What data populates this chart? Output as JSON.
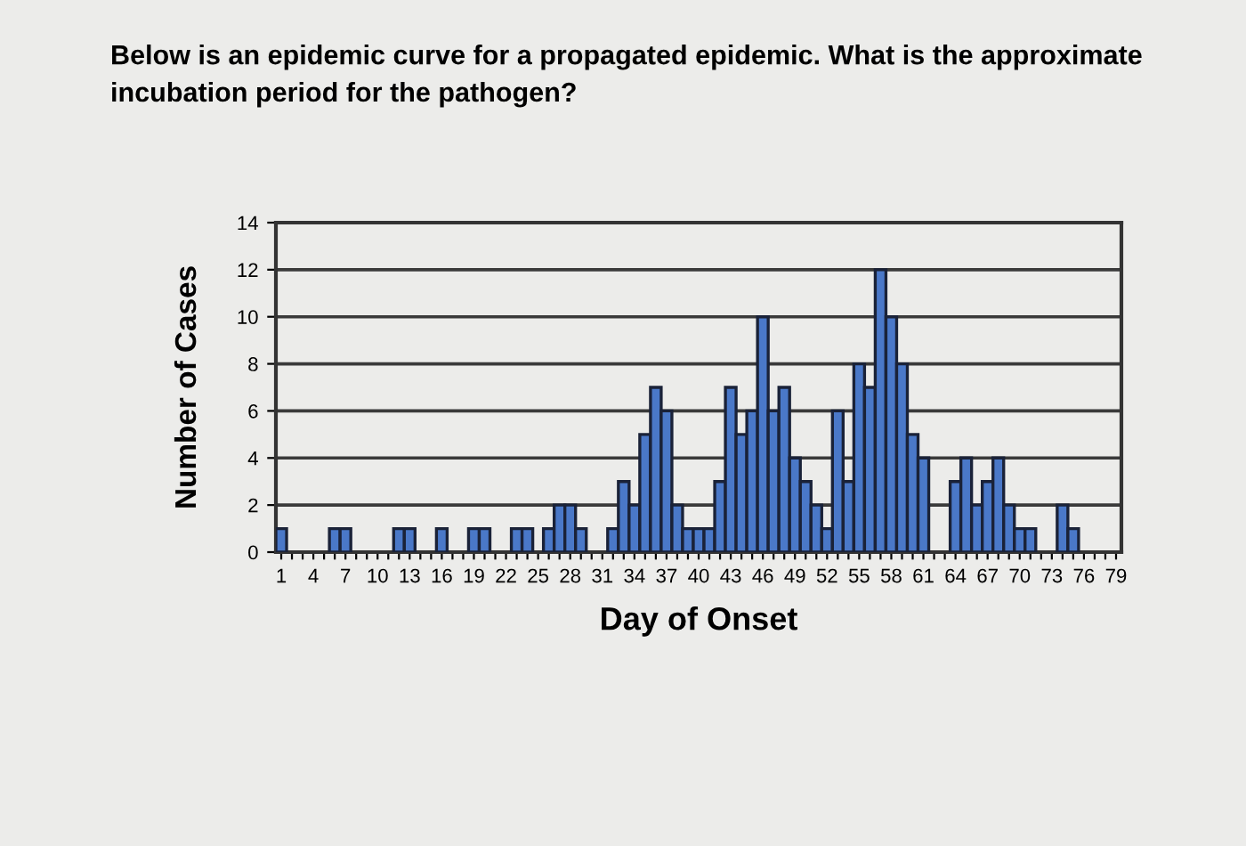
{
  "chart_data": {
    "type": "bar",
    "title": "Below is an epidemic curve for a propagated epidemic. What is the approximate incubation period for the pathogen?",
    "xlabel": "Day of Onset",
    "ylabel": "Number of Cases",
    "categories": [
      "1",
      null,
      null,
      "4",
      null,
      null,
      "7",
      null,
      null,
      "10",
      null,
      null,
      "13",
      null,
      null,
      "16",
      null,
      null,
      "19",
      null,
      null,
      "22",
      null,
      null,
      "25",
      null,
      null,
      "28",
      null,
      null,
      "31",
      null,
      null,
      "34",
      null,
      null,
      "37",
      null,
      null,
      "40",
      null,
      null,
      "43",
      null,
      null,
      "46",
      null,
      null,
      "49",
      null,
      null,
      "52",
      null,
      null,
      "55",
      null,
      null,
      "58",
      null,
      null,
      "61",
      null,
      null,
      "64",
      null,
      null,
      "67",
      null,
      null,
      "70",
      null,
      null,
      "73",
      null,
      null,
      "76",
      null,
      null,
      "79"
    ],
    "values": [
      1,
      0,
      0,
      0,
      0,
      1,
      1,
      0,
      0,
      0,
      0,
      1,
      1,
      0,
      0,
      1,
      0,
      0,
      1,
      1,
      0,
      0,
      1,
      1,
      0,
      1,
      2,
      2,
      1,
      0,
      0,
      1,
      3,
      2,
      5,
      7,
      6,
      2,
      1,
      1,
      1,
      3,
      7,
      5,
      6,
      10,
      6,
      7,
      4,
      3,
      2,
      1,
      6,
      3,
      8,
      7,
      12,
      10,
      8,
      5,
      4,
      0,
      0,
      3,
      4,
      2,
      3,
      4,
      2,
      1,
      1,
      0,
      0,
      2,
      1,
      0,
      0,
      0,
      0
    ],
    "color": "#4a78c8",
    "ylim": [
      0,
      14
    ],
    "yticks": [
      0,
      2,
      4,
      6,
      8,
      10,
      12,
      14
    ],
    "grid": "y"
  }
}
